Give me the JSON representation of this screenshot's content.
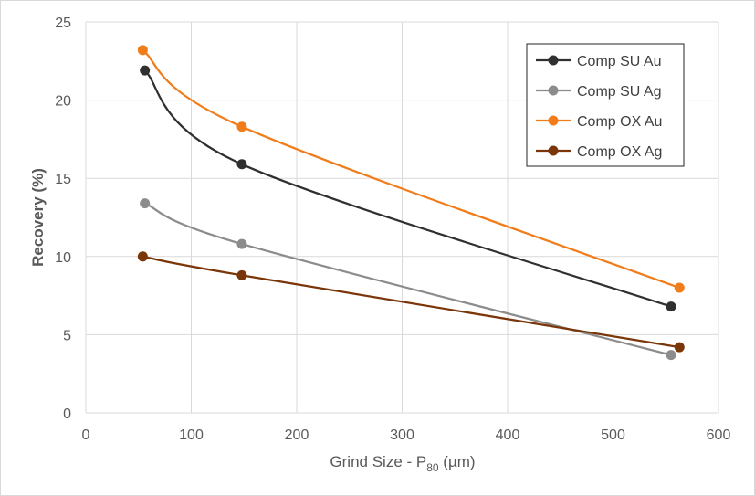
{
  "chart_data": {
    "type": "line",
    "title": "",
    "xlabel": "Grind Size - P",
    "xlabel_sub": "80",
    "xlabel_suffix": " (µm)",
    "ylabel": "Recovery (%)",
    "xlim": [
      0,
      600
    ],
    "ylim": [
      0,
      25
    ],
    "xticks": [
      0,
      100,
      200,
      300,
      400,
      500,
      600
    ],
    "yticks": [
      0,
      5,
      10,
      15,
      20,
      25
    ],
    "grid": true,
    "legend_position": "top-right",
    "series": [
      {
        "name": "Comp SU Au",
        "color": "#303030",
        "smooth": true,
        "x": [
          56,
          148,
          555
        ],
        "y": [
          21.9,
          15.9,
          6.8
        ]
      },
      {
        "name": "Comp SU Ag",
        "color": "#8c8c8c",
        "smooth": true,
        "x": [
          56,
          148,
          555
        ],
        "y": [
          13.4,
          10.8,
          3.7
        ]
      },
      {
        "name": "Comp OX Au",
        "color": "#f07c1a",
        "smooth": true,
        "x": [
          54,
          148,
          563
        ],
        "y": [
          23.2,
          18.3,
          8.0
        ]
      },
      {
        "name": "Comp OX Ag",
        "color": "#7a3508",
        "smooth": true,
        "x": [
          54,
          148,
          563
        ],
        "y": [
          10.0,
          8.8,
          4.2
        ]
      }
    ]
  }
}
